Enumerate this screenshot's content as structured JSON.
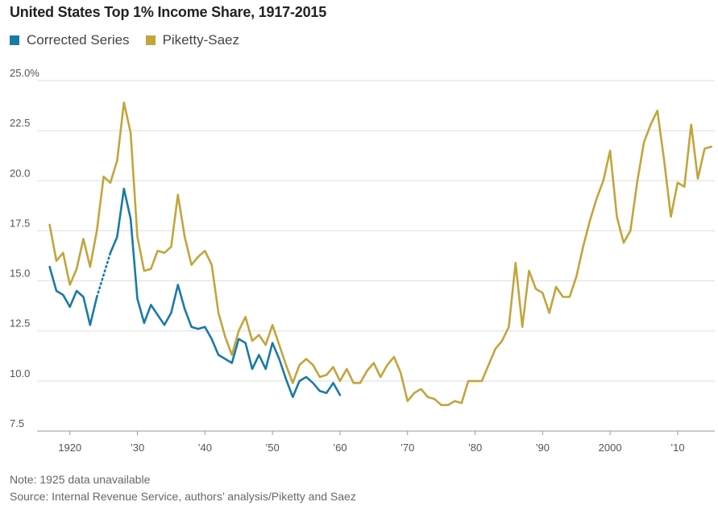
{
  "colors": {
    "corrected": "#1a7aa6",
    "piketty": "#c2a53c",
    "grid": "#dedede",
    "axis": "#999999"
  },
  "chart_data": {
    "type": "line",
    "title": "United States Top 1% Income Share, 1917-2015",
    "ylim": [
      7.5,
      25.0
    ],
    "yticks": [
      7.5,
      10.0,
      12.5,
      15.0,
      17.5,
      20.0,
      22.5,
      25.0
    ],
    "ytick_labels": [
      "7.5",
      "10.0",
      "12.5",
      "15.0",
      "17.5",
      "20.0",
      "22.5",
      "25.0%"
    ],
    "xlim": [
      1915.5,
      2015.5
    ],
    "xticks": [
      1920,
      1930,
      1940,
      1950,
      1960,
      1970,
      1980,
      1990,
      2000,
      2010
    ],
    "xtick_labels": [
      "1920",
      "’30",
      "’40",
      "’50",
      "’60",
      "’70",
      "’80",
      "’90",
      "2000",
      "’10"
    ],
    "legend_placement": "top-left",
    "grid": true,
    "series": [
      {
        "name": "Corrected Series",
        "color": "#1a7aa6",
        "points": [
          [
            1917,
            15.7
          ],
          [
            1918,
            14.5
          ],
          [
            1919,
            14.3
          ],
          [
            1920,
            13.7
          ],
          [
            1921,
            14.5
          ],
          [
            1922,
            14.2
          ],
          [
            1923,
            12.8
          ],
          [
            1924,
            14.2
          ],
          [
            1926,
            16.4
          ],
          [
            1927,
            17.2
          ],
          [
            1928,
            19.6
          ],
          [
            1929,
            18.1
          ],
          [
            1930,
            14.1
          ],
          [
            1931,
            12.9
          ],
          [
            1932,
            13.8
          ],
          [
            1933,
            13.3
          ],
          [
            1934,
            12.8
          ],
          [
            1935,
            13.4
          ],
          [
            1936,
            14.8
          ],
          [
            1937,
            13.6
          ],
          [
            1938,
            12.7
          ],
          [
            1939,
            12.6
          ],
          [
            1940,
            12.7
          ],
          [
            1941,
            12.1
          ],
          [
            1942,
            11.3
          ],
          [
            1943,
            11.1
          ],
          [
            1944,
            10.9
          ],
          [
            1945,
            12.1
          ],
          [
            1946,
            11.9
          ],
          [
            1947,
            10.6
          ],
          [
            1948,
            11.3
          ],
          [
            1949,
            10.6
          ],
          [
            1950,
            11.9
          ],
          [
            1951,
            11.1
          ],
          [
            1952,
            10.1
          ],
          [
            1953,
            9.2
          ],
          [
            1954,
            10.0
          ],
          [
            1955,
            10.2
          ],
          [
            1956,
            9.9
          ],
          [
            1957,
            9.5
          ],
          [
            1958,
            9.4
          ],
          [
            1959,
            9.9
          ],
          [
            1960,
            9.3
          ]
        ],
        "dotted_gap": [
          [
            1924,
            14.2
          ],
          [
            1926,
            16.4
          ]
        ]
      },
      {
        "name": "Piketty-Saez",
        "color": "#c2a53c",
        "points": [
          [
            1917,
            17.8
          ],
          [
            1918,
            16.0
          ],
          [
            1919,
            16.4
          ],
          [
            1920,
            14.8
          ],
          [
            1921,
            15.6
          ],
          [
            1922,
            17.1
          ],
          [
            1923,
            15.7
          ],
          [
            1924,
            17.5
          ],
          [
            1925,
            20.2
          ],
          [
            1926,
            19.9
          ],
          [
            1927,
            21.0
          ],
          [
            1928,
            23.9
          ],
          [
            1929,
            22.4
          ],
          [
            1930,
            17.2
          ],
          [
            1931,
            15.5
          ],
          [
            1932,
            15.6
          ],
          [
            1933,
            16.5
          ],
          [
            1934,
            16.4
          ],
          [
            1935,
            16.7
          ],
          [
            1936,
            19.3
          ],
          [
            1937,
            17.2
          ],
          [
            1938,
            15.8
          ],
          [
            1939,
            16.2
          ],
          [
            1940,
            16.5
          ],
          [
            1941,
            15.8
          ],
          [
            1942,
            13.4
          ],
          [
            1943,
            12.2
          ],
          [
            1944,
            11.3
          ],
          [
            1945,
            12.5
          ],
          [
            1946,
            13.2
          ],
          [
            1947,
            12.0
          ],
          [
            1948,
            12.3
          ],
          [
            1949,
            11.8
          ],
          [
            1950,
            12.8
          ],
          [
            1951,
            11.8
          ],
          [
            1952,
            10.8
          ],
          [
            1953,
            9.9
          ],
          [
            1954,
            10.8
          ],
          [
            1955,
            11.1
          ],
          [
            1956,
            10.8
          ],
          [
            1957,
            10.2
          ],
          [
            1958,
            10.3
          ],
          [
            1959,
            10.7
          ],
          [
            1960,
            10.0
          ],
          [
            1961,
            10.6
          ],
          [
            1962,
            9.9
          ],
          [
            1963,
            9.9
          ],
          [
            1964,
            10.5
          ],
          [
            1965,
            10.9
          ],
          [
            1966,
            10.2
          ],
          [
            1967,
            10.8
          ],
          [
            1968,
            11.2
          ],
          [
            1969,
            10.4
          ],
          [
            1970,
            9.0
          ],
          [
            1971,
            9.4
          ],
          [
            1972,
            9.6
          ],
          [
            1973,
            9.2
          ],
          [
            1974,
            9.1
          ],
          [
            1975,
            8.8
          ],
          [
            1976,
            8.8
          ],
          [
            1977,
            9.0
          ],
          [
            1978,
            8.9
          ],
          [
            1979,
            10.0
          ],
          [
            1980,
            10.0
          ],
          [
            1981,
            10.0
          ],
          [
            1982,
            10.8
          ],
          [
            1983,
            11.6
          ],
          [
            1984,
            12.0
          ],
          [
            1985,
            12.7
          ],
          [
            1986,
            15.9
          ],
          [
            1987,
            12.7
          ],
          [
            1988,
            15.5
          ],
          [
            1989,
            14.6
          ],
          [
            1990,
            14.4
          ],
          [
            1991,
            13.4
          ],
          [
            1992,
            14.7
          ],
          [
            1993,
            14.2
          ],
          [
            1994,
            14.2
          ],
          [
            1995,
            15.2
          ],
          [
            1996,
            16.7
          ],
          [
            1997,
            18.0
          ],
          [
            1998,
            19.1
          ],
          [
            1999,
            20.0
          ],
          [
            2000,
            21.5
          ],
          [
            2001,
            18.2
          ],
          [
            2002,
            16.9
          ],
          [
            2003,
            17.5
          ],
          [
            2004,
            19.9
          ],
          [
            2005,
            21.9
          ],
          [
            2006,
            22.8
          ],
          [
            2007,
            23.5
          ],
          [
            2008,
            21.0
          ],
          [
            2009,
            18.2
          ],
          [
            2010,
            19.9
          ],
          [
            2011,
            19.7
          ],
          [
            2012,
            22.8
          ],
          [
            2013,
            20.1
          ],
          [
            2014,
            21.6
          ],
          [
            2015,
            21.7
          ]
        ]
      }
    ]
  },
  "notes": {
    "note": "Note: 1925 data unavailable",
    "source": "Source: Internal Revenue Service, authors’ analysis/Piketty and Saez"
  }
}
